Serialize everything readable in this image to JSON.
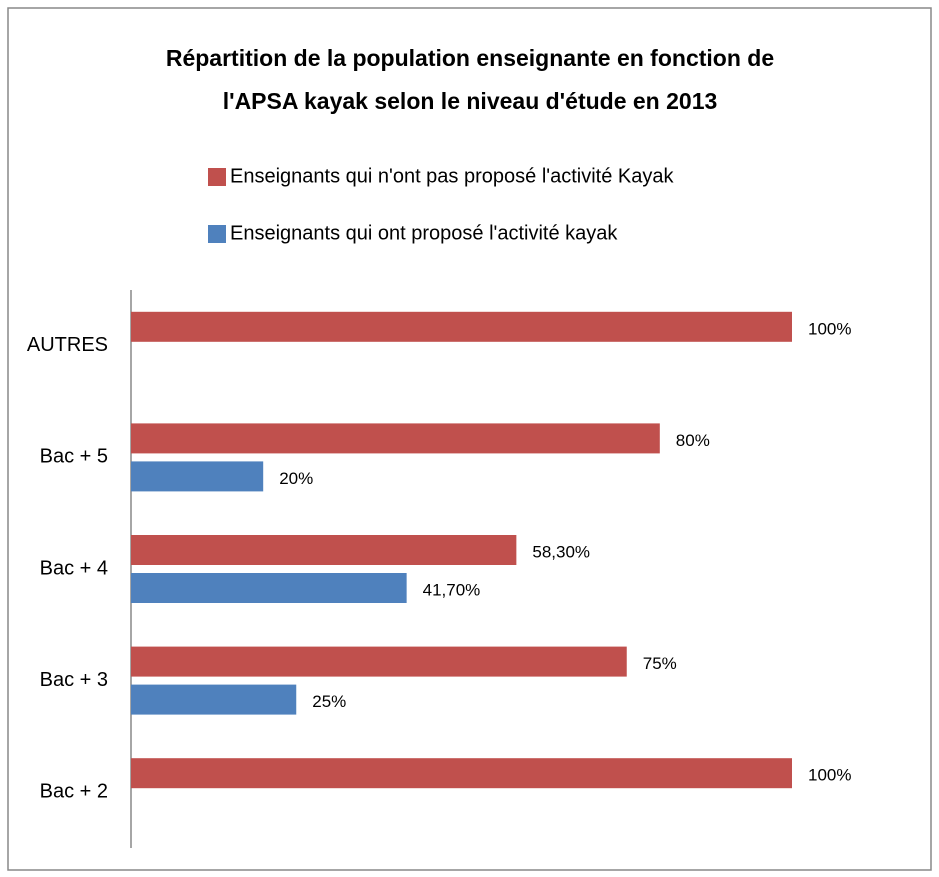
{
  "chart_data": {
    "type": "barh",
    "title": [
      "Répartition de la population enseignante en fonction de",
      "l'APSA kayak selon le niveau d'étude en 2013"
    ],
    "categories": [
      "AUTRES",
      "Bac + 5",
      "Bac + 4",
      "Bac + 3",
      "Bac + 2"
    ],
    "series": [
      {
        "name": "Enseignants qui n'ont pas proposé l'activité Kayak",
        "color": "#c0504d",
        "values": [
          100,
          80,
          58.3,
          75,
          100
        ],
        "value_labels": [
          "100%",
          "80%",
          "58,30%",
          "75%",
          "100%"
        ]
      },
      {
        "name": "Enseignants qui ont proposé l'activité kayak",
        "color": "#4f81bd",
        "values": [
          null,
          20,
          41.7,
          25,
          null
        ],
        "value_labels": [
          null,
          "20%",
          "41,70%",
          "25%",
          null
        ]
      }
    ],
    "xlim": [
      0,
      100
    ]
  }
}
